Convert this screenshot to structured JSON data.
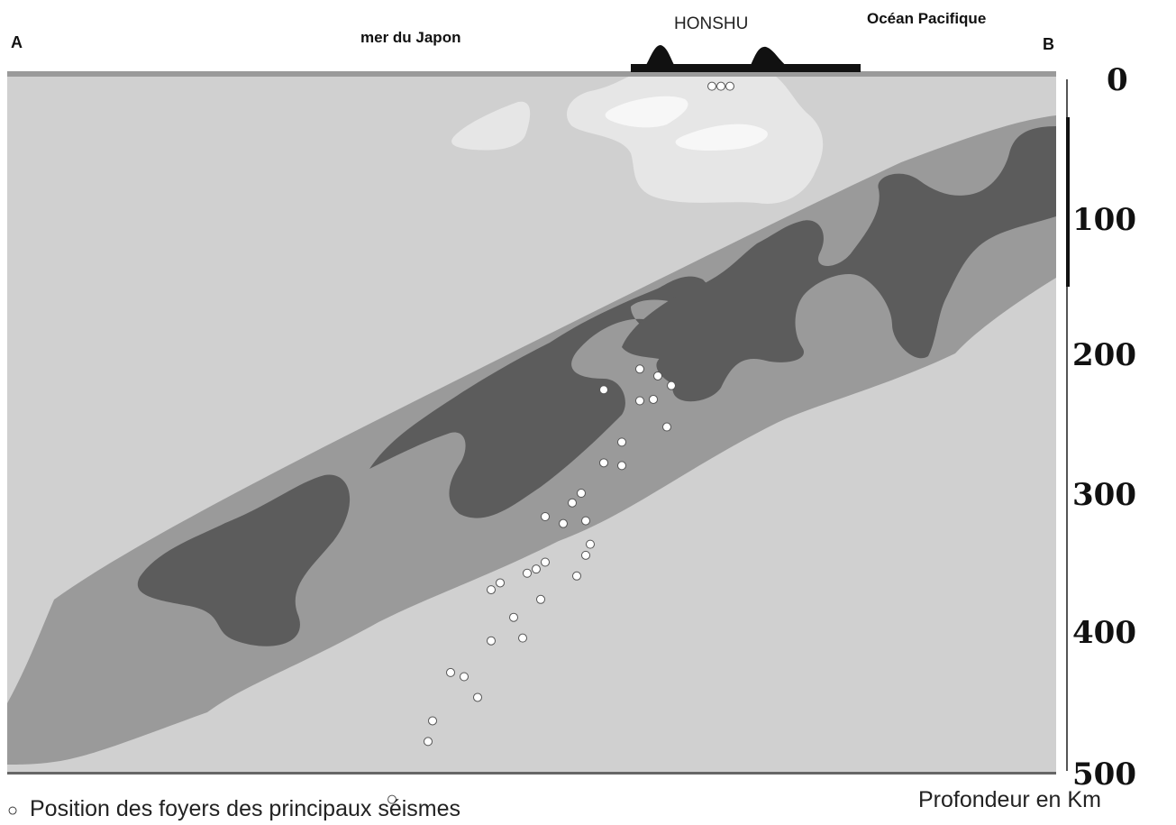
{
  "labels": {
    "point_a": "A",
    "point_b": "B",
    "sea": "mer du Japon",
    "island": "HONSHU",
    "ocean": "Océan  Pacifique"
  },
  "depth_scale": {
    "ticks": [
      "0",
      "100",
      "200",
      "300",
      "400",
      "500"
    ],
    "caption": "Profondeur en Km"
  },
  "legend": {
    "marker": "○",
    "text": "Position des foyers des principaux séismes"
  },
  "colors": {
    "mantle": "#d0d0d0",
    "slab_outer": "#9a9a9a",
    "slab_core": "#5c5c5c",
    "hot_zone": "#e6e6e6",
    "hottest_zone": "#f7f7f7",
    "land": "#111111",
    "focus": "#ffffff"
  },
  "earthquake_foci_km": [
    [
      -10,
      5
    ],
    [
      0,
      5
    ],
    [
      10,
      5
    ],
    [
      -70,
      215
    ],
    [
      -90,
      233
    ],
    [
      -60,
      252
    ],
    [
      -110,
      263
    ],
    [
      -130,
      278
    ],
    [
      -155,
      300
    ],
    [
      -165,
      307
    ],
    [
      -175,
      322
    ],
    [
      -195,
      317
    ],
    [
      -145,
      337
    ],
    [
      -150,
      345
    ],
    [
      -205,
      355
    ],
    [
      -230,
      390
    ],
    [
      -255,
      407
    ],
    [
      -300,
      430
    ],
    [
      -200,
      377
    ],
    [
      -285,
      433
    ],
    [
      -270,
      448
    ],
    [
      -220,
      405
    ],
    [
      -320,
      465
    ],
    [
      -325,
      480
    ],
    [
      -365,
      522
    ],
    [
      -405,
      553
    ],
    [
      -350,
      547
    ],
    [
      -130,
      225
    ],
    [
      -90,
      210
    ],
    [
      -55,
      222
    ],
    [
      -75,
      232
    ],
    [
      -110,
      280
    ],
    [
      -150,
      320
    ],
    [
      -160,
      360
    ],
    [
      -195,
      350
    ],
    [
      -215,
      358
    ],
    [
      -245,
      365
    ],
    [
      -255,
      370
    ]
  ]
}
